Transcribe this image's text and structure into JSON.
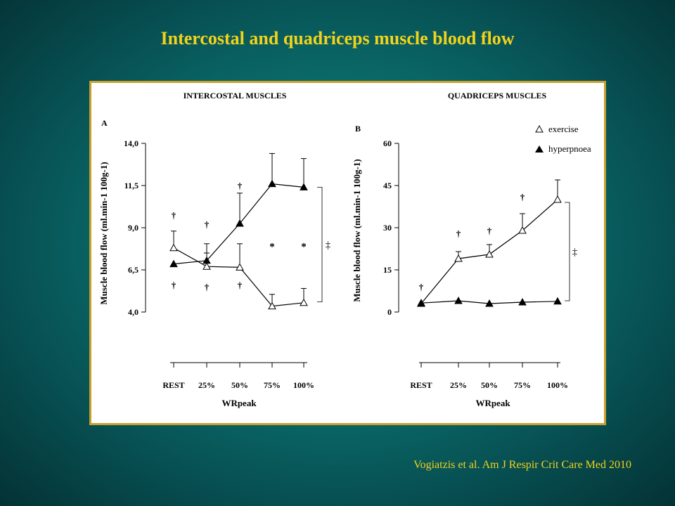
{
  "slide": {
    "title": "Intercostal and quadriceps muscle blood flow",
    "citation": "Vogiatzis et al. Am J Respir Crit Care Med 2010"
  },
  "legend": {
    "items": [
      {
        "symbol": "open-triangle",
        "label": "exercise"
      },
      {
        "symbol": "filled-triangle",
        "label": "hyperpnoea"
      }
    ]
  },
  "chart_data": [
    {
      "type": "line",
      "panel": "A",
      "title": "INTERCOSTAL MUSCLES",
      "xlabel": "WRpeak",
      "ylabel": "Muscle blood flow (ml.min-1 100g-1)",
      "categories": [
        "REST",
        "25%",
        "50%",
        "75%",
        "100%"
      ],
      "ylim": [
        4.0,
        14.0
      ],
      "yticks": [
        "4,0",
        "6,5",
        "9,0",
        "11,5",
        "14,0"
      ],
      "series": [
        {
          "name": "exercise",
          "marker": "open-triangle",
          "values": [
            7.8,
            6.7,
            6.65,
            4.35,
            4.55
          ],
          "err_up": [
            1.0,
            0.8,
            1.4,
            0.7,
            0.85
          ]
        },
        {
          "name": "hyperpnoea",
          "marker": "filled-triangle",
          "values": [
            6.85,
            7.05,
            9.25,
            11.6,
            11.4
          ],
          "err_up": [
            0,
            1.0,
            1.8,
            1.8,
            1.7
          ]
        }
      ],
      "annotations": [
        {
          "text": "†",
          "x": "REST",
          "y": 9.75
        },
        {
          "text": "†",
          "x": "25%",
          "y": 9.2
        },
        {
          "text": "†",
          "x": "50%",
          "y": 11.5
        },
        {
          "text": "†",
          "x": "REST",
          "y": 5.6
        },
        {
          "text": "†",
          "x": "25%",
          "y": 5.5
        },
        {
          "text": "†",
          "x": "50%",
          "y": 5.6
        },
        {
          "text": "*",
          "x": "75%",
          "y": 7.9
        },
        {
          "text": "*",
          "x": "100%",
          "y": 7.9
        },
        {
          "text": "‡",
          "bracket": [
            4.6,
            11.4
          ]
        }
      ]
    },
    {
      "type": "line",
      "panel": "B",
      "title": "QUADRICEPS MUSCLES",
      "xlabel": "WRpeak",
      "ylabel": "Muscle blood flow (ml.min-1 100g-1)",
      "categories": [
        "REST",
        "25%",
        "50%",
        "75%",
        "100%"
      ],
      "ylim": [
        0,
        60
      ],
      "yticks": [
        "0",
        "15",
        "30",
        "45",
        "60"
      ],
      "series": [
        {
          "name": "exercise",
          "marker": "open-triangle",
          "values": [
            3,
            19,
            20.5,
            29,
            40
          ],
          "err_up": [
            0,
            2.5,
            3.5,
            6,
            7
          ]
        },
        {
          "name": "hyperpnoea",
          "marker": "filled-triangle",
          "values": [
            3.2,
            4,
            3,
            3.5,
            3.8
          ],
          "err_up": [
            0,
            0,
            0,
            0,
            0
          ]
        }
      ],
      "annotations": [
        {
          "text": "†",
          "x": "REST",
          "y": 9
        },
        {
          "text": "†",
          "x": "25%",
          "y": 28
        },
        {
          "text": "†",
          "x": "50%",
          "y": 29
        },
        {
          "text": "†",
          "x": "75%",
          "y": 41
        },
        {
          "text": "‡",
          "bracket": [
            4,
            39
          ]
        }
      ]
    }
  ]
}
